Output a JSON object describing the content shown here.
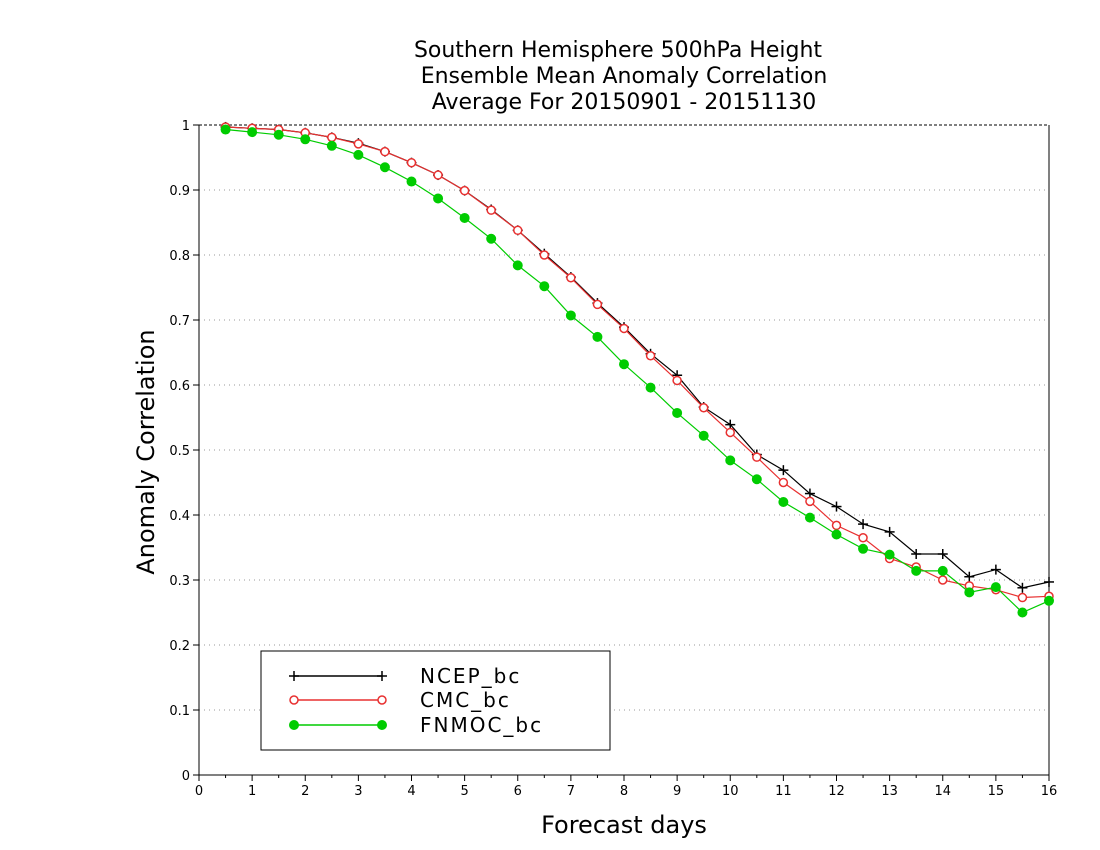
{
  "chart_data": {
    "type": "line",
    "title_lines": [
      "Southern Hemisphere 500hPa Height",
      "Ensemble Mean Anomaly Correlation",
      "Average For 20150901 - 20151130"
    ],
    "xlabel": "Forecast days",
    "ylabel": "Anomaly Correlation",
    "xlim": [
      0,
      16
    ],
    "ylim": [
      0,
      1
    ],
    "x_ticks": [
      0,
      1,
      2,
      3,
      4,
      5,
      6,
      7,
      8,
      9,
      10,
      11,
      12,
      13,
      14,
      15,
      16
    ],
    "y_ticks": [
      0,
      0.1,
      0.2,
      0.3,
      0.4,
      0.5,
      0.6,
      0.7,
      0.8,
      0.9,
      1
    ],
    "y_tick_labels": [
      "0",
      "0.1",
      "0.2",
      "0.3",
      "0.4",
      "0.5",
      "0.6",
      "0.7",
      "0.8",
      "0.9",
      "1"
    ],
    "grid": "horizontal dotted",
    "legend_position": "bottom-left",
    "x": [
      0.5,
      1,
      1.5,
      2,
      2.5,
      3,
      3.5,
      4,
      4.5,
      5,
      5.5,
      6,
      6.5,
      7,
      7.5,
      8,
      8.5,
      9,
      9.5,
      10,
      10.5,
      11,
      11.5,
      12,
      12.5,
      13,
      13.5,
      14,
      14.5,
      15,
      15.5,
      16
    ],
    "series": [
      {
        "name": "NCEP_bc",
        "color": "#000000",
        "marker": "plus",
        "values": [
          0.997,
          0.995,
          0.993,
          0.988,
          0.981,
          0.972,
          0.959,
          0.942,
          0.923,
          0.899,
          0.87,
          0.838,
          0.802,
          0.766,
          0.726,
          0.689,
          0.648,
          0.615,
          0.566,
          0.539,
          0.493,
          0.469,
          0.433,
          0.413,
          0.386,
          0.374,
          0.34,
          0.34,
          0.305,
          0.316,
          0.288,
          0.297
        ]
      },
      {
        "name": "CMC_bc",
        "color": "#e83030",
        "marker": "open-circle",
        "values": [
          0.997,
          0.995,
          0.993,
          0.988,
          0.981,
          0.971,
          0.959,
          0.942,
          0.923,
          0.899,
          0.869,
          0.838,
          0.8,
          0.765,
          0.724,
          0.687,
          0.645,
          0.607,
          0.565,
          0.527,
          0.489,
          0.45,
          0.421,
          0.384,
          0.365,
          0.333,
          0.32,
          0.3,
          0.291,
          0.285,
          0.273,
          0.275
        ]
      },
      {
        "name": "FNMOC_bc",
        "color": "#00cc00",
        "marker": "filled-circle",
        "values": [
          0.993,
          0.989,
          0.985,
          0.978,
          0.968,
          0.954,
          0.935,
          0.913,
          0.887,
          0.857,
          0.825,
          0.784,
          0.752,
          0.707,
          0.674,
          0.632,
          0.596,
          0.557,
          0.522,
          0.484,
          0.455,
          0.42,
          0.396,
          0.37,
          0.348,
          0.339,
          0.314,
          0.314,
          0.281,
          0.289,
          0.25,
          0.268
        ]
      }
    ]
  }
}
